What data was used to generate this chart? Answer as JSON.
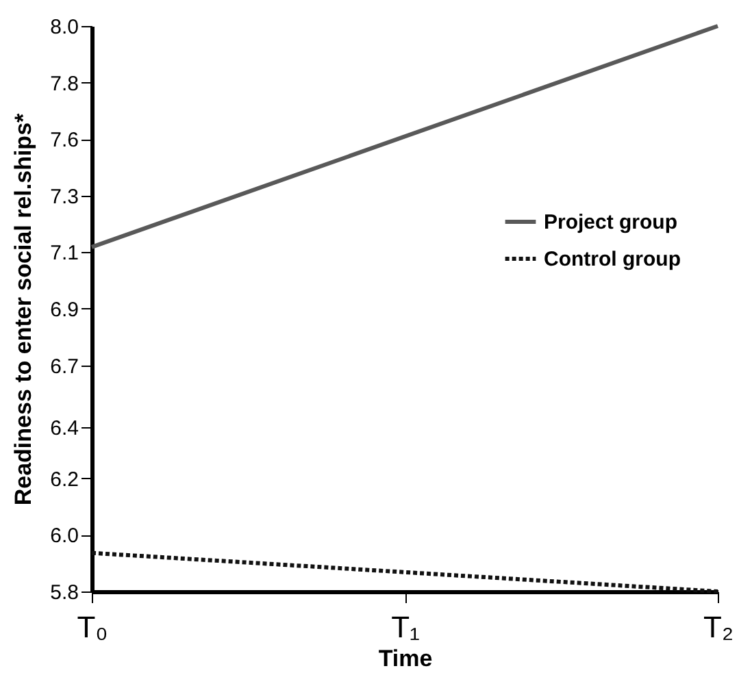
{
  "chart_data": {
    "type": "line",
    "xlabel": "Time",
    "ylabel": "Readiness to enter social rel.ships*",
    "categories": [
      "T₀",
      "T₁",
      "T₂"
    ],
    "series": [
      {
        "name": "Project group",
        "color": "#595959",
        "line_style": "solid",
        "values": [
          7.14,
          7.57,
          8.0
        ]
      },
      {
        "name": "Control group",
        "color": "#111111",
        "line_style": "dotted",
        "values": [
          5.95,
          5.875,
          5.8
        ]
      }
    ],
    "ylim": [
      5.8,
      8.0
    ],
    "yticks": [
      {
        "value": 5.8,
        "label": "5.8"
      },
      {
        "value": 6.02,
        "label": "6.0"
      },
      {
        "value": 6.24,
        "label": "6.2"
      },
      {
        "value": 6.44,
        "label": "6.4"
      },
      {
        "value": 6.68,
        "label": "6.7"
      },
      {
        "value": 6.9,
        "label": "6.9"
      },
      {
        "value": 7.12,
        "label": "7.1"
      },
      {
        "value": 7.34,
        "label": "7.3"
      },
      {
        "value": 7.56,
        "label": "7.6"
      },
      {
        "value": 7.78,
        "label": "7.8"
      },
      {
        "value": 8.0,
        "label": "8.0"
      }
    ],
    "grid": false,
    "legend": "right",
    "marker": "none"
  }
}
